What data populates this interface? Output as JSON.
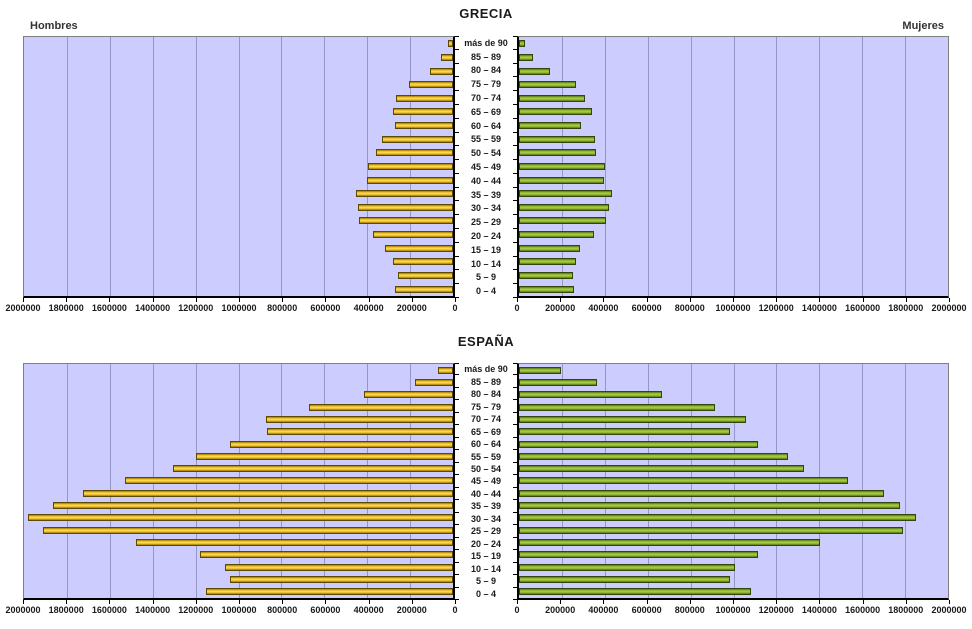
{
  "colors": {
    "plot_bg": "#CCCCFF",
    "gridline": "#9595C8",
    "axis": "#000000",
    "men_bar_center": "#FFD447",
    "men_bar_edge": "#9C7A00",
    "men_bar_border": "#5B4A00",
    "women_bar_center": "#A3C93E",
    "women_bar_edge": "#55731A",
    "women_bar_border": "#33470A"
  },
  "chart_data": [
    {
      "id": "grecia",
      "type": "bar",
      "subtype": "population_pyramid",
      "title": "GRECIA",
      "left_label": "Hombres",
      "right_label": "Mujeres",
      "grid": true,
      "categories_top_to_bottom": [
        "más de 90",
        "85 – 89",
        "80 – 84",
        "75 – 79",
        "70 – 74",
        "65 – 69",
        "60 – 64",
        "55 – 59",
        "50 – 54",
        "45 – 49",
        "40 – 44",
        "35 – 39",
        "30 – 34",
        "25 – 29",
        "20 – 24",
        "15 – 19",
        "10 – 14",
        "5 – 9",
        "0 – 4"
      ],
      "series": [
        {
          "name": "Hombres",
          "side": "left",
          "values": [
            25000,
            55000,
            105000,
            205000,
            265000,
            280000,
            270000,
            330000,
            360000,
            395000,
            400000,
            450000,
            445000,
            440000,
            375000,
            315000,
            280000,
            255000,
            270000
          ]
        },
        {
          "name": "Mujeres",
          "side": "right",
          "values": [
            30000,
            65000,
            145000,
            265000,
            310000,
            340000,
            290000,
            355000,
            360000,
            400000,
            395000,
            435000,
            420000,
            405000,
            350000,
            285000,
            265000,
            250000,
            255000
          ]
        }
      ],
      "x_axis": {
        "min": 0,
        "max": 2000000,
        "tick_step": 200000,
        "left_tick_labels": [
          "2000000",
          "1800000",
          "1600000",
          "1400000",
          "1200000",
          "1000000",
          "800000",
          "600000",
          "400000",
          "200000",
          "0"
        ],
        "right_tick_labels": [
          "0",
          "200000",
          "400000",
          "600000",
          "800000",
          "1000000",
          "1200000",
          "1400000",
          "1600000",
          "1800000",
          "2000000"
        ]
      }
    },
    {
      "id": "espana",
      "type": "bar",
      "subtype": "population_pyramid",
      "title": "ESPAÑA",
      "grid": true,
      "categories_top_to_bottom": [
        "más de 90",
        "85 – 89",
        "80 – 84",
        "75 – 79",
        "70 – 74",
        "65 – 69",
        "60 – 64",
        "55 – 59",
        "50 – 54",
        "45 – 49",
        "40 – 44",
        "35 – 39",
        "30 – 34",
        "25 – 29",
        "20 – 24",
        "15 – 19",
        "10 – 14",
        "5 – 9",
        "0 – 4"
      ],
      "series": [
        {
          "name": "Hombres",
          "side": "left",
          "values": [
            70000,
            175000,
            415000,
            670000,
            870000,
            865000,
            1040000,
            1200000,
            1305000,
            1530000,
            1725000,
            1865000,
            1980000,
            1910000,
            1480000,
            1180000,
            1065000,
            1040000,
            1150000
          ]
        },
        {
          "name": "Mujeres",
          "side": "right",
          "values": [
            195000,
            365000,
            665000,
            915000,
            1060000,
            985000,
            1115000,
            1255000,
            1330000,
            1535000,
            1700000,
            1775000,
            1850000,
            1790000,
            1405000,
            1115000,
            1005000,
            985000,
            1080000
          ]
        }
      ],
      "x_axis": {
        "min": 0,
        "max": 2000000,
        "tick_step": 200000,
        "left_tick_labels": [
          "2000000",
          "1800000",
          "1600000",
          "1400000",
          "1200000",
          "1000000",
          "800000",
          "600000",
          "400000",
          "200000",
          "0"
        ],
        "right_tick_labels": [
          "0",
          "200000",
          "400000",
          "600000",
          "800000",
          "1000000",
          "1200000",
          "1400000",
          "1600000",
          "1800000",
          "2000000"
        ]
      }
    }
  ]
}
